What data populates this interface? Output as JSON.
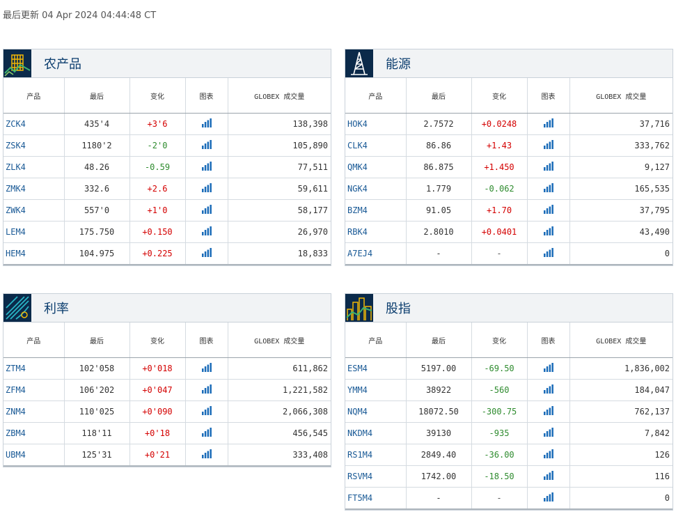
{
  "last_updated": "最后更新 04 Apr 2024 04:44:48 CT",
  "columns": {
    "product": "产品",
    "last": "最后",
    "change": "变化",
    "chart": "图表",
    "volume": "GLOBEX 成交量"
  },
  "panels": [
    {
      "id": "agriculture",
      "title": "农产品",
      "icon": "wheat-icon",
      "rows": [
        {
          "symbol": "ZCK4",
          "last": "435'4",
          "change": "+3'6",
          "dir": "pos",
          "volume": "138,398"
        },
        {
          "symbol": "ZSK4",
          "last": "1180'2",
          "change": "-2'0",
          "dir": "neg",
          "volume": "105,890"
        },
        {
          "symbol": "ZLK4",
          "last": "48.26",
          "change": "-0.59",
          "dir": "neg",
          "volume": "77,511"
        },
        {
          "symbol": "ZMK4",
          "last": "332.6",
          "change": "+2.6",
          "dir": "pos",
          "volume": "59,611"
        },
        {
          "symbol": "ZWK4",
          "last": "557'0",
          "change": "+1'0",
          "dir": "pos",
          "volume": "58,177"
        },
        {
          "symbol": "LEM4",
          "last": "175.750",
          "change": "+0.150",
          "dir": "pos",
          "volume": "26,970"
        },
        {
          "symbol": "HEM4",
          "last": "104.975",
          "change": "+0.225",
          "dir": "pos",
          "volume": "18,833"
        }
      ]
    },
    {
      "id": "energy",
      "title": "能源",
      "icon": "oil-derrick-icon",
      "rows": [
        {
          "symbol": "HOK4",
          "last": "2.7572",
          "change": "+0.0248",
          "dir": "pos",
          "volume": "37,716"
        },
        {
          "symbol": "CLK4",
          "last": "86.86",
          "change": "+1.43",
          "dir": "pos",
          "volume": "333,762"
        },
        {
          "symbol": "QMK4",
          "last": "86.875",
          "change": "+1.450",
          "dir": "pos",
          "volume": "9,127"
        },
        {
          "symbol": "NGK4",
          "last": "1.779",
          "change": "-0.062",
          "dir": "neg",
          "volume": "165,535"
        },
        {
          "symbol": "BZM4",
          "last": "91.05",
          "change": "+1.70",
          "dir": "pos",
          "volume": "37,795"
        },
        {
          "symbol": "RBK4",
          "last": "2.8010",
          "change": "+0.0401",
          "dir": "pos",
          "volume": "43,490"
        },
        {
          "symbol": "A7EJ4",
          "last": "-",
          "change": "-",
          "dir": "flat",
          "volume": "0"
        }
      ]
    },
    {
      "id": "interest-rates",
      "title": "利率",
      "icon": "rates-icon",
      "rows": [
        {
          "symbol": "ZTM4",
          "last": "102'058",
          "change": "+0'018",
          "dir": "pos",
          "volume": "611,862"
        },
        {
          "symbol": "ZFM4",
          "last": "106'202",
          "change": "+0'047",
          "dir": "pos",
          "volume": "1,221,582"
        },
        {
          "symbol": "ZNM4",
          "last": "110'025",
          "change": "+0'090",
          "dir": "pos",
          "volume": "2,066,308"
        },
        {
          "symbol": "ZBM4",
          "last": "118'11",
          "change": "+0'18",
          "dir": "pos",
          "volume": "456,545"
        },
        {
          "symbol": "UBM4",
          "last": "125'31",
          "change": "+0'21",
          "dir": "pos",
          "volume": "333,408"
        }
      ]
    },
    {
      "id": "equity-index",
      "title": "股指",
      "icon": "skyline-icon",
      "rows": [
        {
          "symbol": "ESM4",
          "last": "5197.00",
          "change": "-69.50",
          "dir": "neg",
          "volume": "1,836,002"
        },
        {
          "symbol": "YMM4",
          "last": "38922",
          "change": "-560",
          "dir": "neg",
          "volume": "184,047"
        },
        {
          "symbol": "NQM4",
          "last": "18072.50",
          "change": "-300.75",
          "dir": "neg",
          "volume": "762,137"
        },
        {
          "symbol": "NKDM4",
          "last": "39130",
          "change": "-935",
          "dir": "neg",
          "volume": "7,842"
        },
        {
          "symbol": "RS1M4",
          "last": "2849.40",
          "change": "-36.00",
          "dir": "neg",
          "volume": "126"
        },
        {
          "symbol": "RSVM4",
          "last": "1742.00",
          "change": "-18.50",
          "dir": "neg",
          "volume": "116"
        },
        {
          "symbol": "FT5M4",
          "last": "-",
          "change": "-",
          "dir": "flat",
          "volume": "0"
        }
      ]
    }
  ],
  "colors": {
    "positive": "#d40000",
    "negative": "#2e8b2e",
    "symbol": "#1a5a96",
    "title": "#0b3d6e",
    "icon_bg": "#0b2a4a"
  }
}
